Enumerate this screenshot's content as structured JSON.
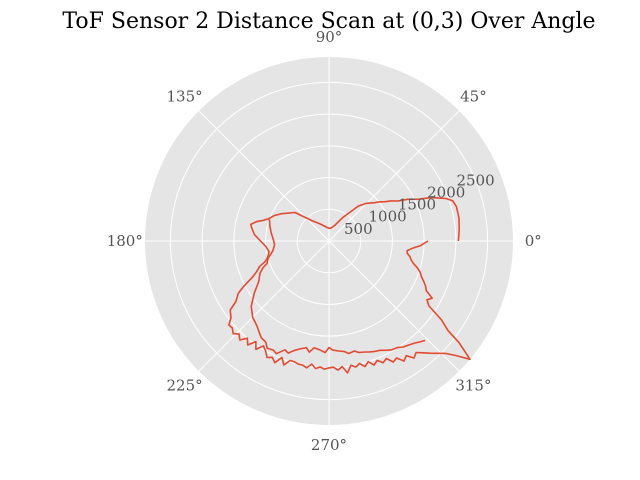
{
  "chart_data": {
    "type": "line",
    "projection": "polar",
    "title": "ToF Sensor 2 Distance Scan at (0,3) Over Angle",
    "theta_ticks_deg": [
      0,
      45,
      90,
      135,
      180,
      225,
      270,
      315
    ],
    "theta_labels": [
      "0°",
      "45°",
      "90°",
      "135°",
      "180°",
      "225°",
      "270°",
      "315°"
    ],
    "r_ticks": [
      500,
      1000,
      1500,
      2000,
      2500
    ],
    "r_labels": [
      "500",
      "1000",
      "1500",
      "2000",
      "2500"
    ],
    "rlim": [
      0,
      2900
    ],
    "rlabel_angle_deg": 22.5,
    "grid": true,
    "colors": {
      "background": "#e5e5e5",
      "grid": "#ffffff",
      "line": "#e24a33"
    },
    "series": [
      {
        "theta_deg": [
          0,
          5,
          10,
          15,
          18,
          20,
          23,
          25,
          28,
          30,
          33,
          35,
          38,
          40,
          45,
          50,
          60,
          70,
          80,
          90,
          100,
          110,
          120,
          130,
          140,
          150,
          155,
          160,
          163,
          165,
          168,
          170,
          175,
          180,
          185,
          190,
          195,
          198,
          200,
          203,
          205,
          208,
          210,
          213,
          215,
          218,
          220,
          222,
          224,
          226,
          228,
          230,
          232,
          234,
          236,
          238,
          240,
          242,
          244,
          246,
          248,
          250,
          252,
          254,
          256,
          258,
          260,
          262,
          264,
          266,
          268,
          270,
          272,
          274,
          276,
          278,
          280,
          282,
          284,
          286,
          288,
          290,
          292,
          294,
          296,
          298,
          300,
          302,
          304,
          306,
          308,
          310,
          312,
          314,
          316,
          318,
          320,
          322,
          323,
          325,
          327,
          329,
          331,
          333,
          335,
          337,
          339,
          341,
          343,
          345,
          347,
          349,
          351,
          353,
          355,
          357,
          360
        ],
        "r": [
          2040,
          2060,
          2080,
          2080,
          2050,
          1960,
          1750,
          1560,
          1400,
          1260,
          1160,
          1080,
          1000,
          940,
          840,
          720,
          420,
          260,
          210,
          200,
          220,
          260,
          320,
          420,
          700,
          860,
          950,
          1020,
          1100,
          1180,
          1260,
          1240,
          1180,
          1080,
          1000,
          960,
          1000,
          1060,
          1160,
          1240,
          1320,
          1520,
          1650,
          1750,
          1900,
          1960,
          2060,
          2050,
          2100,
          2040,
          2100,
          2000,
          2080,
          1960,
          2060,
          1950,
          2000,
          2080,
          2040,
          2100,
          1980,
          2080,
          1980,
          1980,
          2000,
          2000,
          2030,
          1960,
          2020,
          1990,
          2020,
          2000,
          1990,
          2040,
          1990,
          2100,
          1990,
          2030,
          1990,
          2060,
          2000,
          2080,
          2030,
          2100,
          2060,
          2160,
          2130,
          2230,
          2180,
          2280,
          2230,
          2300,
          2380,
          2460,
          2550,
          2700,
          2900,
          2600,
          2350,
          2160,
          1880,
          1800,
          1860,
          1720,
          1680,
          1620,
          1560,
          1520,
          1460,
          1380,
          1330,
          1300,
          1250,
          1240,
          1320,
          1440,
          1560
        ]
      },
      {
        "theta_deg": [
          160,
          166,
          172,
          178,
          184,
          190,
          196,
          200,
          202,
          205,
          210,
          215,
          220,
          225,
          230,
          233,
          235,
          238,
          240,
          243,
          245,
          248,
          250,
          252,
          255,
          258,
          260,
          262,
          265,
          268,
          270,
          272,
          275,
          278,
          280,
          283,
          285,
          288,
          290,
          292,
          295,
          298,
          300,
          303,
          305,
          307,
          310,
          312,
          314
        ],
        "r": [
          1000,
          960,
          920,
          880,
          860,
          900,
          1000,
          1040,
          1120,
          1200,
          1280,
          1440,
          1600,
          1700,
          1760,
          1820,
          1860,
          1880,
          1950,
          1930,
          1960,
          1850,
          1880,
          1820,
          1760,
          1720,
          1780,
          1700,
          1720,
          1760,
          1680,
          1720,
          1740,
          1760,
          1800,
          1780,
          1820,
          1840,
          1860,
          1880,
          1900,
          1950,
          1980,
          2000,
          2040,
          2060,
          2100,
          2140,
          2180
        ]
      }
    ]
  }
}
